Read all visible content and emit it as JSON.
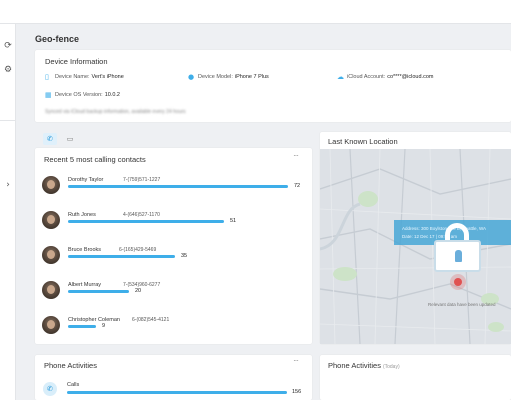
{
  "nav": {
    "rail_icons": [
      "refresh-icon",
      "settings-icon",
      "chevron-right-icon"
    ],
    "rail_glyphs": [
      "⟳",
      "⚙",
      "›"
    ]
  },
  "page": {
    "title": "Geo-fence"
  },
  "device_info": {
    "title": "Device Information",
    "name_label": "Device Name:",
    "name_value": "Vert's iPhone",
    "model_label": "Device Model:",
    "model_value": "iPhone 7 Plus",
    "icloud_label": "iCloud Account:",
    "icloud_value": "co****@icloud.com",
    "os_label": "Device OS Version:",
    "os_value": "10.0.2",
    "sync_note": "Synced via iCloud backup information, available every 24 hours"
  },
  "tabs": [
    {
      "name": "phone-tab",
      "glyph": "✆",
      "active": true
    },
    {
      "name": "message-tab",
      "glyph": "▭",
      "active": false
    }
  ],
  "contacts": {
    "title": "Recent 5 most calling contacts",
    "more": "···",
    "items": [
      {
        "name": "Dorothy Taylor",
        "number": "7-(759)571-1227",
        "count": 72
      },
      {
        "name": "Ruth Jones",
        "number": "4-(646)527-1170",
        "count": 51
      },
      {
        "name": "Bruce Brooks",
        "number": "6-(165)429-5469",
        "count": 35
      },
      {
        "name": "Albert Murray",
        "number": "7-(534)960-6277",
        "count": 20
      },
      {
        "name": "Christopher Coleman",
        "number": "6-(082)545-4121",
        "count": 9
      }
    ],
    "max_count": 72
  },
  "location": {
    "title": "Last Known Location",
    "info_line1": "Address: 300 Boylston Ave E, Seattle, WA",
    "info_line2": "Date: 12 Dec 17 | 09:52 am",
    "map_note": "Relevant data have been updated",
    "pin_color": "#e05252"
  },
  "phone_activities_left": {
    "title": "Phone Activities",
    "more": "···",
    "calls_label": "Calls",
    "calls_count": 156
  },
  "phone_activities_right": {
    "title": "Phone Activities",
    "subtitle": "(Today)"
  },
  "colors": {
    "accent": "#3eaee9",
    "page_bg": "#eef0f3"
  }
}
